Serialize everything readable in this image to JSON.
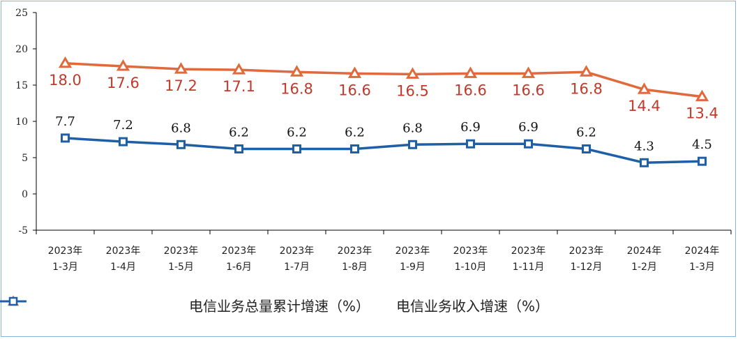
{
  "chart_data": {
    "type": "line",
    "categories": [
      [
        "2023年",
        "1-3月"
      ],
      [
        "2023年",
        "1-4月"
      ],
      [
        "2023年",
        "1-5月"
      ],
      [
        "2023年",
        "1-6月"
      ],
      [
        "2023年",
        "1-7月"
      ],
      [
        "2023年",
        "1-8月"
      ],
      [
        "2023年",
        "1-9月"
      ],
      [
        "2023年",
        "1-10月"
      ],
      [
        "2023年",
        "1-11月"
      ],
      [
        "2023年",
        "1-12月"
      ],
      [
        "2024年",
        "1-2月"
      ],
      [
        "2024年",
        "1-3月"
      ]
    ],
    "series": [
      {
        "name": "电信业务总量累计增速（%）",
        "values": [
          18.0,
          17.6,
          17.2,
          17.1,
          16.8,
          16.6,
          16.5,
          16.6,
          16.6,
          16.8,
          14.4,
          13.4
        ],
        "labels": [
          "18.0",
          "17.6",
          "17.2",
          "17.1",
          "16.8",
          "16.6",
          "16.5",
          "16.6",
          "16.6",
          "16.8",
          "14.4",
          "13.4"
        ],
        "color": "#e06a3c",
        "label_color": "#c0392b",
        "marker": "triangle"
      },
      {
        "name": "电信业务收入增速（%）",
        "values": [
          7.7,
          7.2,
          6.8,
          6.2,
          6.2,
          6.2,
          6.8,
          6.9,
          6.9,
          6.2,
          4.3,
          4.5
        ],
        "labels": [
          "7.7",
          "7.2",
          "6.8",
          "6.2",
          "6.2",
          "6.2",
          "6.8",
          "6.9",
          "6.9",
          "6.2",
          "4.3",
          "4.5"
        ],
        "color": "#1f5fa8",
        "label_color": "#111111",
        "marker": "square"
      }
    ],
    "yticks": [
      "25",
      "20",
      "15",
      "10",
      "5",
      "0",
      "-5"
    ],
    "ylim": [
      -5,
      25
    ],
    "legend": "bottom",
    "grid": false
  }
}
